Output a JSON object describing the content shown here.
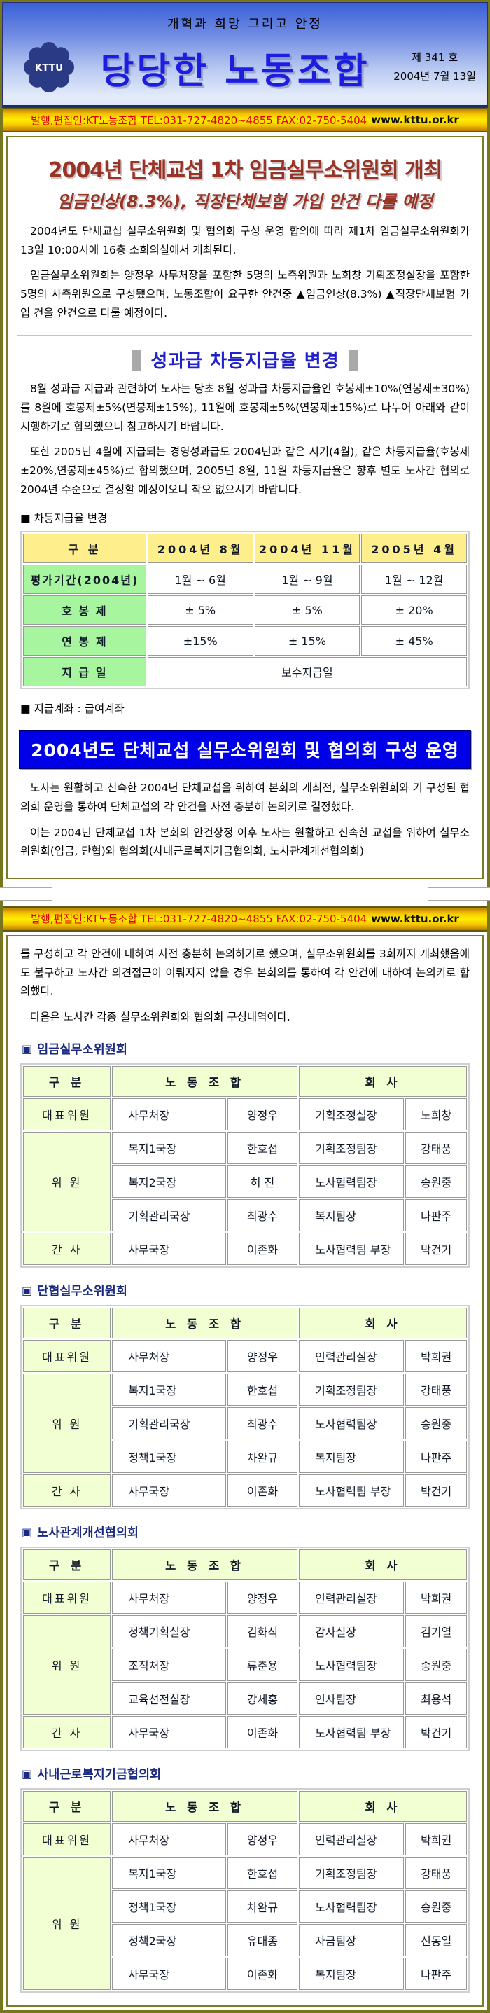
{
  "header": {
    "slogan": "개혁과 희망 그리고 안정",
    "logo_text": "KTTU",
    "title": "당당한 노동조합",
    "issue_no": "제 341 호",
    "issue_date": "2004년 7월 13일"
  },
  "publisher_bar": {
    "text": "발행,편집인:KT노동조합 TEL:031-727-4820~4855 FAX:02-750-5404",
    "url": "www.kttu.or.kr"
  },
  "article1": {
    "title": "2004년 단체교섭 1차 임금실무소위원회 개최",
    "subtitle": "임금인상(8.3%),  직장단체보험 가입 안건 다룰 예정",
    "p1": "2004년도 단체교섭 실무소위원회 및 협의회 구성 운영 합의에 따라 제1차 임금실무소위원회가 13일 10:00시에 16층 소회의실에서 개최된다.",
    "p2": "임금실무소위원회는 양정우 사무처장을 포함한 5명의 노측위원과 노희창 기획조정실장을 포함한 5명의 사측위원으로 구성됐으며, 노동조합이 요구한 안건중 ▲임금인상(8.3%) ▲직장단체보험 가입 건을 안건으로 다룰 예정이다."
  },
  "section2": {
    "heading": "성과급 차등지급율 변경",
    "p1": "8월 성과급 지급과 관련하여 노사는 당초 8월 성과급 차등지급율인 호봉제±10%(연봉제±30%)를 8월에 호봉제±5%(연봉제±15%), 11월에 호봉제±5%(연봉제±15%)로 나누어 아래와 같이 시행하기로 합의했으니 참고하시기 바랍니다.",
    "p2": "또한 2005년 4월에 지급되는 경영성과급도 2004년과 같은 시기(4월), 같은 차등지급율(호봉제±20%,연봉제±45%)로 합의했으며, 2005년 8월, 11월 차등지급율은 향후 별도 노사간 협의로 2004년 수준으로 결정할 예정이오니 착오 없으시기 바랍니다.",
    "table_label": "■ 차등지급율 변경",
    "account_label": "■ 지급계좌 : 급여계좌",
    "pay_table": {
      "headers": [
        "구 분",
        "2004년 8월",
        "2004년 11월",
        "2005년 4월"
      ],
      "col_widths": [
        "28%",
        "24%",
        "24%",
        "24%"
      ],
      "rows": [
        {
          "label": "평가기간(2004년)",
          "cells": [
            "1월 ~ 6월",
            "1월 ~ 9월",
            "1월 ~ 12월"
          ]
        },
        {
          "label": "호 봉 제",
          "cells": [
            "± 5%",
            "± 5%",
            "± 20%"
          ]
        },
        {
          "label": "연 봉 제",
          "cells": [
            "±15%",
            "± 15%",
            "± 45%"
          ]
        },
        {
          "label": "지 급 일",
          "cells": [
            "보수지급일"
          ],
          "span": 3
        }
      ]
    }
  },
  "article2": {
    "banner": "2004년도 단체교섭 실무소위원회 및 협의회 구성 운영",
    "p1": "노사는 원활하고 신속한 2004년 단체교섭을 위하여 본회의 개최전, 실무소위원회와 기 구성된 협의회 운영을 통하여 단체교섭의 각 안건을 사전 충분히 논의키로 결정했다.",
    "p2": "이는 2004년 단체교섭 1차 본회의 안건상정 이후 노사는 원활하고 신속한 교섭을 위하여 실무소위원회(임금, 단협)와 협의회(사내근로복지기금협의회, 노사관계개선협의회)",
    "p3_cont": "를 구성하고 각 안건에 대하여 사전 충분히 논의하기로 했으며, 실무소위원회를 3회까지 개최했음에도 불구하고 노사간 의견접근이 이뤄지지 않을 경우 본회의를 통하여 각 안건에 대하여 논의키로 합의했다.",
    "p4": "다음은 노사간 각종 실무소위원회와 협의회 구성내역이다."
  },
  "committee_common": {
    "square_icon": "▣",
    "headers": [
      "구 분",
      "노 동 조 합",
      "회 사"
    ],
    "col_widths": [
      "20%",
      "26%",
      "16%",
      "24%",
      "14%"
    ]
  },
  "committees": [
    {
      "title": "임금실무소위원회",
      "groups": [
        {
          "label": "대표위원",
          "rows": [
            [
              "사무처장",
              "양정우",
              "기획조정실장",
              "노희창"
            ]
          ]
        },
        {
          "label": "위 원",
          "rows": [
            [
              "복지1국장",
              "한호섭",
              "기획조정팀장",
              "강태풍"
            ],
            [
              "복지2국장",
              "허 진",
              "노사협력팀장",
              "송원중"
            ],
            [
              "기획관리국장",
              "최광수",
              "복지팀장",
              "나판주"
            ]
          ]
        },
        {
          "label": "간 사",
          "rows": [
            [
              "사무국장",
              "이존화",
              "노사협력팀 부장",
              "박건기"
            ]
          ]
        }
      ]
    },
    {
      "title": "단협실무소위원회",
      "groups": [
        {
          "label": "대표위원",
          "rows": [
            [
              "사무처장",
              "양정우",
              "인력관리실장",
              "박희권"
            ]
          ]
        },
        {
          "label": "위 원",
          "rows": [
            [
              "복지1국장",
              "한호섭",
              "기획조정팀장",
              "강태풍"
            ],
            [
              "기획관리국장",
              "최광수",
              "노사협력팀장",
              "송원중"
            ],
            [
              "정책1국장",
              "차완규",
              "복지팀장",
              "나판주"
            ]
          ]
        },
        {
          "label": "간 사",
          "rows": [
            [
              "사무국장",
              "이존화",
              "노사협력팀 부장",
              "박건기"
            ]
          ]
        }
      ]
    },
    {
      "title": "노사관계개선협의회",
      "groups": [
        {
          "label": "대표위원",
          "rows": [
            [
              "사무처장",
              "양정우",
              "인력관리실장",
              "박희권"
            ]
          ]
        },
        {
          "label": "위 원",
          "rows": [
            [
              "정책기획실장",
              "김화식",
              "감사실장",
              "김기열"
            ],
            [
              "조직처장",
              "류춘용",
              "노사협력팀장",
              "송원중"
            ],
            [
              "교육선전실장",
              "강세홍",
              "인사팀장",
              "최용석"
            ]
          ]
        },
        {
          "label": "간 사",
          "rows": [
            [
              "사무국장",
              "이존화",
              "노사협력팀 부장",
              "박건기"
            ]
          ]
        }
      ]
    },
    {
      "title": "사내근로복지기금협의회",
      "groups": [
        {
          "label": "대표위원",
          "rows": [
            [
              "사무처장",
              "양정우",
              "인력관리실장",
              "박희권"
            ]
          ]
        },
        {
          "label": "위 원",
          "rows": [
            [
              "복지1국장",
              "한호섭",
              "기획조정팀장",
              "강태풍"
            ],
            [
              "정책1국장",
              "차완규",
              "노사협력팀장",
              "송원중"
            ],
            [
              "정책2국장",
              "유대종",
              "자금팀장",
              "신동일"
            ],
            [
              "사무국장",
              "이존화",
              "복지팀장",
              "나판주"
            ]
          ]
        }
      ]
    }
  ],
  "colors": {
    "accent_blue": "#0000e8",
    "headline_red": "#993326",
    "bar_yellow": "#ffee00",
    "table_header_yellow": "#ffee8c",
    "table_label_green": "#a8f5a0",
    "committee_pale_green": "#f2ffd2",
    "border_olive": "#76761c"
  }
}
